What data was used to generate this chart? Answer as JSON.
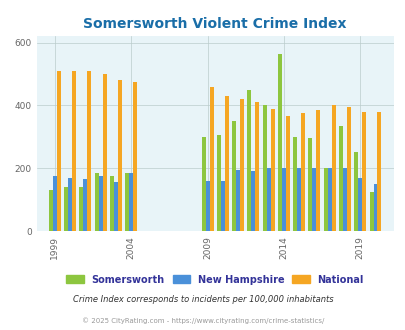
{
  "title": "Somersworth Violent Crime Index",
  "years": [
    1999,
    2000,
    2001,
    2002,
    2003,
    2004,
    2009,
    2010,
    2011,
    2012,
    2013,
    2014,
    2015,
    2016,
    2017,
    2018,
    2019,
    2020
  ],
  "somersworth": [
    130,
    140,
    140,
    185,
    175,
    185,
    300,
    305,
    350,
    450,
    400,
    565,
    300,
    295,
    200,
    335,
    250,
    125
  ],
  "new_hampshire": [
    175,
    170,
    165,
    175,
    155,
    185,
    160,
    160,
    195,
    190,
    200,
    200,
    200,
    200,
    200,
    200,
    170,
    150
  ],
  "national": [
    510,
    510,
    510,
    500,
    480,
    475,
    460,
    430,
    420,
    410,
    390,
    365,
    375,
    385,
    400,
    395,
    380,
    380
  ],
  "bar_colors": {
    "somersworth": "#8DC63F",
    "new_hampshire": "#4A90D9",
    "national": "#F5A623"
  },
  "ylim": [
    0,
    620
  ],
  "yticks": [
    0,
    200,
    400,
    600
  ],
  "xtick_years": [
    1999,
    2004,
    2009,
    2014,
    2019
  ],
  "plot_bg_color": "#E8F4F8",
  "fig_bg_color": "#FFFFFF",
  "title_color": "#1A6EA8",
  "title_fontsize": 10,
  "legend_labels": [
    "Somersworth",
    "New Hampshire",
    "National"
  ],
  "legend_text_color": "#333399",
  "footer_note": "Crime Index corresponds to incidents per 100,000 inhabitants",
  "footer_copyright": "© 2025 CityRating.com - https://www.cityrating.com/crime-statistics/",
  "bar_width": 0.26,
  "grid_color": "#BBCCCC"
}
